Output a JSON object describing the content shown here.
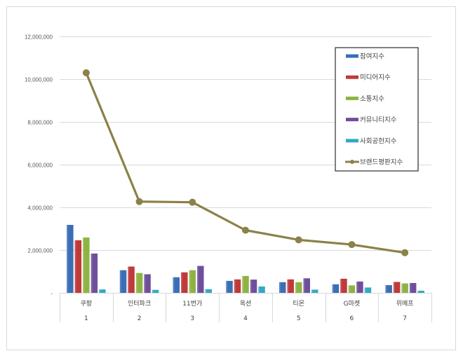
{
  "chart_data": {
    "type": "bar+line",
    "title": "",
    "xlabel": "",
    "ylabel": "",
    "ylim": [
      0,
      12000000
    ],
    "y_ticks": [
      0,
      2000000,
      4000000,
      6000000,
      8000000,
      10000000,
      12000000
    ],
    "y_tick_labels": [
      "-",
      "2,000,000",
      "4,000,000",
      "6,000,000",
      "8,000,000",
      "10,000,000",
      "12,000,000"
    ],
    "grid": true,
    "legend_position": "upper-right (inside plot)",
    "categories": [
      "쿠팡",
      "인터파크",
      "11번가",
      "옥션",
      "티몬",
      "G마켓",
      "위메프"
    ],
    "category_ranks": [
      "1",
      "2",
      "3",
      "4",
      "5",
      "6",
      "7"
    ],
    "series": [
      {
        "name": "참여지수",
        "kind": "bar",
        "color": "#3a6fb7",
        "values": [
          3180000,
          1060000,
          730000,
          560000,
          500000,
          400000,
          360000
        ]
      },
      {
        "name": "미디어지수",
        "kind": "bar",
        "color": "#c0393b",
        "values": [
          2460000,
          1230000,
          960000,
          630000,
          630000,
          660000,
          510000
        ]
      },
      {
        "name": "소통지수",
        "kind": "bar",
        "color": "#8db443",
        "values": [
          2590000,
          930000,
          1060000,
          790000,
          500000,
          350000,
          440000
        ]
      },
      {
        "name": "커뮤니티지수",
        "kind": "bar",
        "color": "#6f4f9c",
        "values": [
          1840000,
          870000,
          1260000,
          620000,
          680000,
          530000,
          460000
        ]
      },
      {
        "name": "사회공헌지수",
        "kind": "bar",
        "color": "#33a9c6",
        "values": [
          160000,
          140000,
          170000,
          300000,
          150000,
          250000,
          100000
        ]
      },
      {
        "name": "브랜드평판지수",
        "kind": "line",
        "color": "#8b8149",
        "values": [
          10300000,
          4270000,
          4240000,
          2930000,
          2480000,
          2260000,
          1880000
        ]
      }
    ]
  },
  "legend": {
    "items": [
      "참여지수",
      " 미디어지수",
      "소통지수",
      " 커뮤니티지수",
      "사회공헌지수",
      "브랜드평판지수"
    ]
  }
}
